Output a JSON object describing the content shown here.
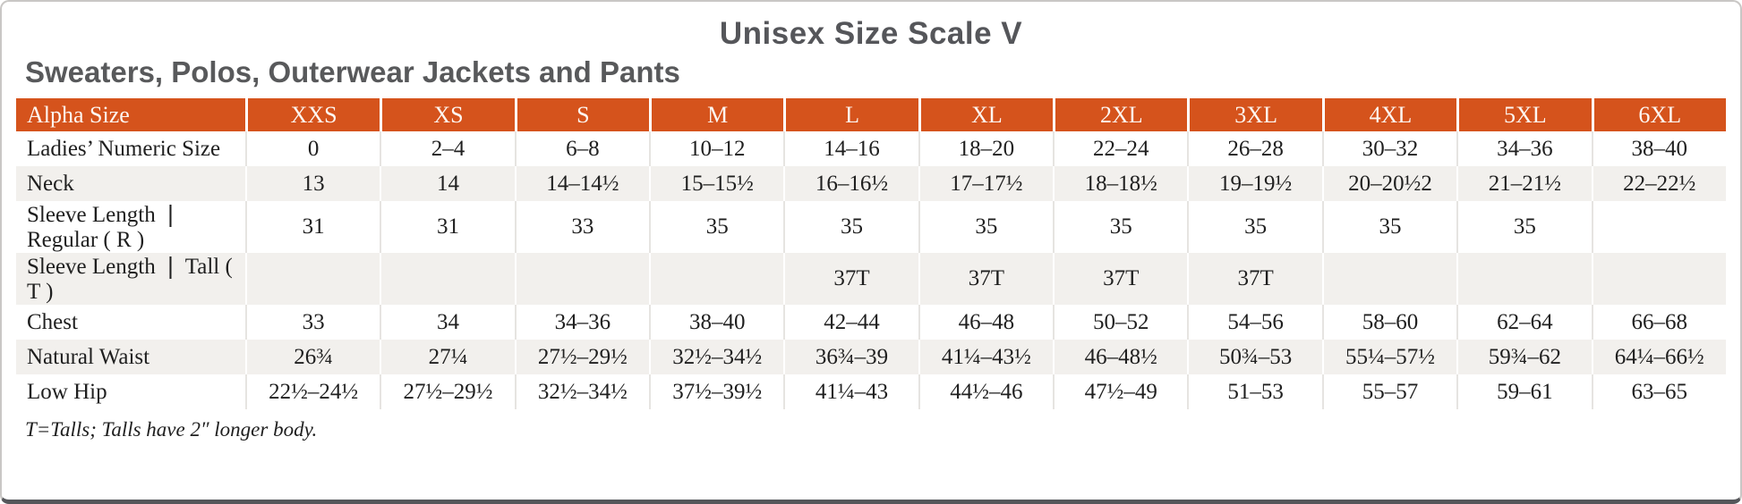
{
  "page": {
    "title": "Unisex Size Scale V",
    "subtitle": "Sweaters, Polos, Outerwear Jackets and Pants",
    "footnote": "T=Talls; Talls have 2″ longer body."
  },
  "colors": {
    "header_bg": "#d5531c",
    "header_text": "#fdf6f1",
    "row_alt_bg": "#f2f0ed",
    "title_text": "#55565a"
  },
  "chart_data": {
    "type": "table",
    "columns": [
      "Alpha Size",
      "XXS",
      "XS",
      "S",
      "M",
      "L",
      "XL",
      "2XL",
      "3XL",
      "4XL",
      "5XL",
      "6XL"
    ],
    "rows": [
      {
        "label": "Ladies’ Numeric Size",
        "values": [
          "0",
          "2–4",
          "6–8",
          "10–12",
          "14–16",
          "18–20",
          "22–24",
          "26–28",
          "30–32",
          "34–36",
          "38–40"
        ]
      },
      {
        "label": "Neck",
        "values": [
          "13",
          "14",
          "14–14½",
          "15–15½",
          "16–16½",
          "17–17½",
          "18–18½",
          "19–19½",
          "20–20½2",
          "21–21½",
          "22–22½"
        ]
      },
      {
        "label": "Sleeve Length ❘ Regular ( R )",
        "values": [
          "31",
          "31",
          "33",
          "35",
          "35",
          "35",
          "35",
          "35",
          "35",
          "35",
          ""
        ]
      },
      {
        "label": "Sleeve Length ❘ Tall ( T )",
        "values": [
          "",
          "",
          "",
          "",
          "37T",
          "37T",
          "37T",
          "37T",
          "",
          "",
          ""
        ]
      },
      {
        "label": "Chest",
        "values": [
          "33",
          "34",
          "34–36",
          "38–40",
          "42–44",
          "46–48",
          "50–52",
          "54–56",
          "58–60",
          "62–64",
          "66–68"
        ]
      },
      {
        "label": "Natural Waist",
        "values": [
          "26¾",
          "27¼",
          "27½–29½",
          "32½–34½",
          "36¾–39",
          "41¼–43½",
          "46–48½",
          "50¾–53",
          "55¼–57½",
          "59¾–62",
          "64¼–66½"
        ]
      },
      {
        "label": "Low Hip",
        "values": [
          "22½–24½",
          "27½–29½",
          "32½–34½",
          "37½–39½",
          "41¼–43",
          "44½–46",
          "47½–49",
          "51–53",
          "55–57",
          "59–61",
          "63–65"
        ]
      }
    ]
  }
}
